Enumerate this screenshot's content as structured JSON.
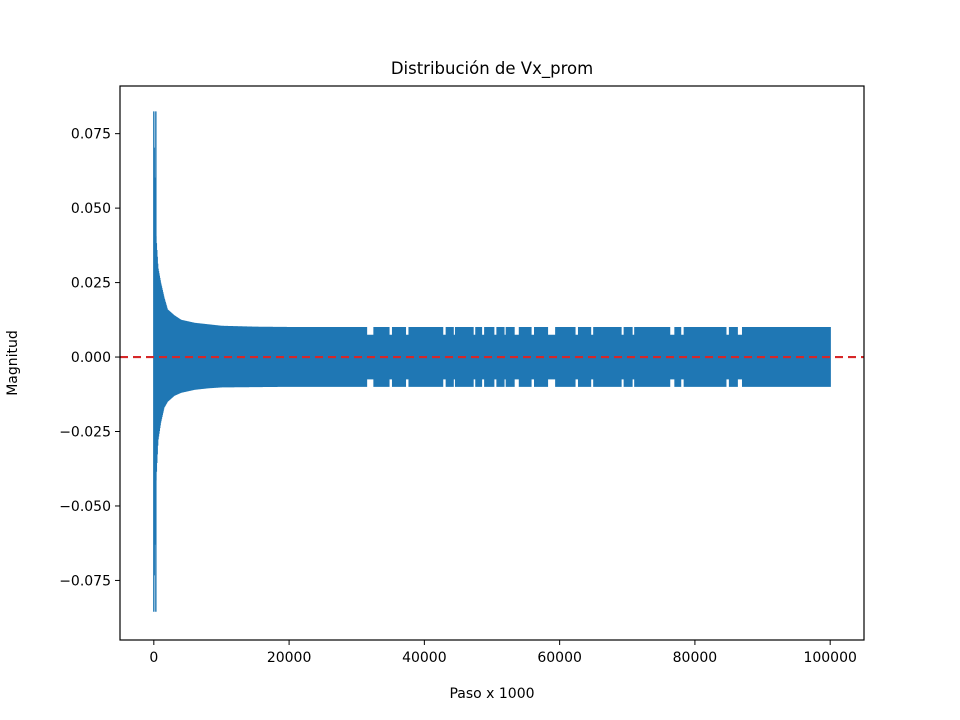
{
  "chart_data": {
    "type": "line",
    "title": "Distribución de Vx_prom",
    "xlabel": "Paso x 1000",
    "ylabel": "Magnitud",
    "xlim": [
      -5000,
      105000
    ],
    "ylim": [
      -0.095,
      0.091
    ],
    "grid": false,
    "legend": "none",
    "x_ticks": [
      0,
      20000,
      40000,
      60000,
      80000,
      100000
    ],
    "x_tick_labels": [
      "0",
      "20000",
      "40000",
      "60000",
      "80000",
      "100000"
    ],
    "y_ticks": [
      -0.075,
      -0.05,
      -0.025,
      0.0,
      0.025,
      0.05,
      0.075
    ],
    "y_tick_labels": [
      "−0.075",
      "−0.050",
      "−0.025",
      "0.000",
      "0.025",
      "0.050",
      "0.075"
    ],
    "series": [
      {
        "color": "#1f77b4",
        "x_range": [
          0,
          100000
        ],
        "max_value": 0.0825,
        "min_value": -0.0855,
        "envelope": {
          "x": [
            0,
            100,
            300,
            600,
            1000,
            1500,
            2000,
            3000,
            4000,
            5000,
            6000,
            8000,
            10000,
            15000,
            20000,
            30000,
            40000,
            60000,
            80000,
            100000
          ],
          "upper": [
            0.0825,
            0.063,
            0.041,
            0.03,
            0.025,
            0.02,
            0.016,
            0.014,
            0.0125,
            0.012,
            0.0115,
            0.011,
            0.0105,
            0.0102,
            0.0101,
            0.0101,
            0.0101,
            0.0101,
            0.0101,
            0.0101
          ],
          "lower": [
            -0.0855,
            -0.066,
            -0.042,
            -0.028,
            -0.022,
            -0.017,
            -0.015,
            -0.013,
            -0.012,
            -0.0115,
            -0.011,
            -0.0105,
            -0.0102,
            -0.0101,
            -0.01,
            -0.01,
            -0.01,
            -0.01,
            -0.01,
            -0.01
          ]
        },
        "gap_intervals": [
          [
            31500,
            32500
          ],
          [
            34800,
            35300
          ],
          [
            37200,
            37700
          ],
          [
            42700,
            43200
          ],
          [
            44300,
            44600
          ],
          [
            47200,
            47600
          ],
          [
            48500,
            48900
          ],
          [
            50300,
            50700
          ],
          [
            51800,
            52100
          ],
          [
            53300,
            54000
          ],
          [
            55800,
            56300
          ],
          [
            58200,
            59400
          ],
          [
            62300,
            62800
          ],
          [
            64600,
            65000
          ],
          [
            69100,
            69500
          ],
          [
            70700,
            71100
          ],
          [
            76300,
            77000
          ],
          [
            77900,
            78400
          ],
          [
            84600,
            85100
          ],
          [
            86300,
            87000
          ]
        ]
      }
    ],
    "reference_line": {
      "y": 0.0,
      "color": "#d62728",
      "style": "dashed"
    }
  }
}
